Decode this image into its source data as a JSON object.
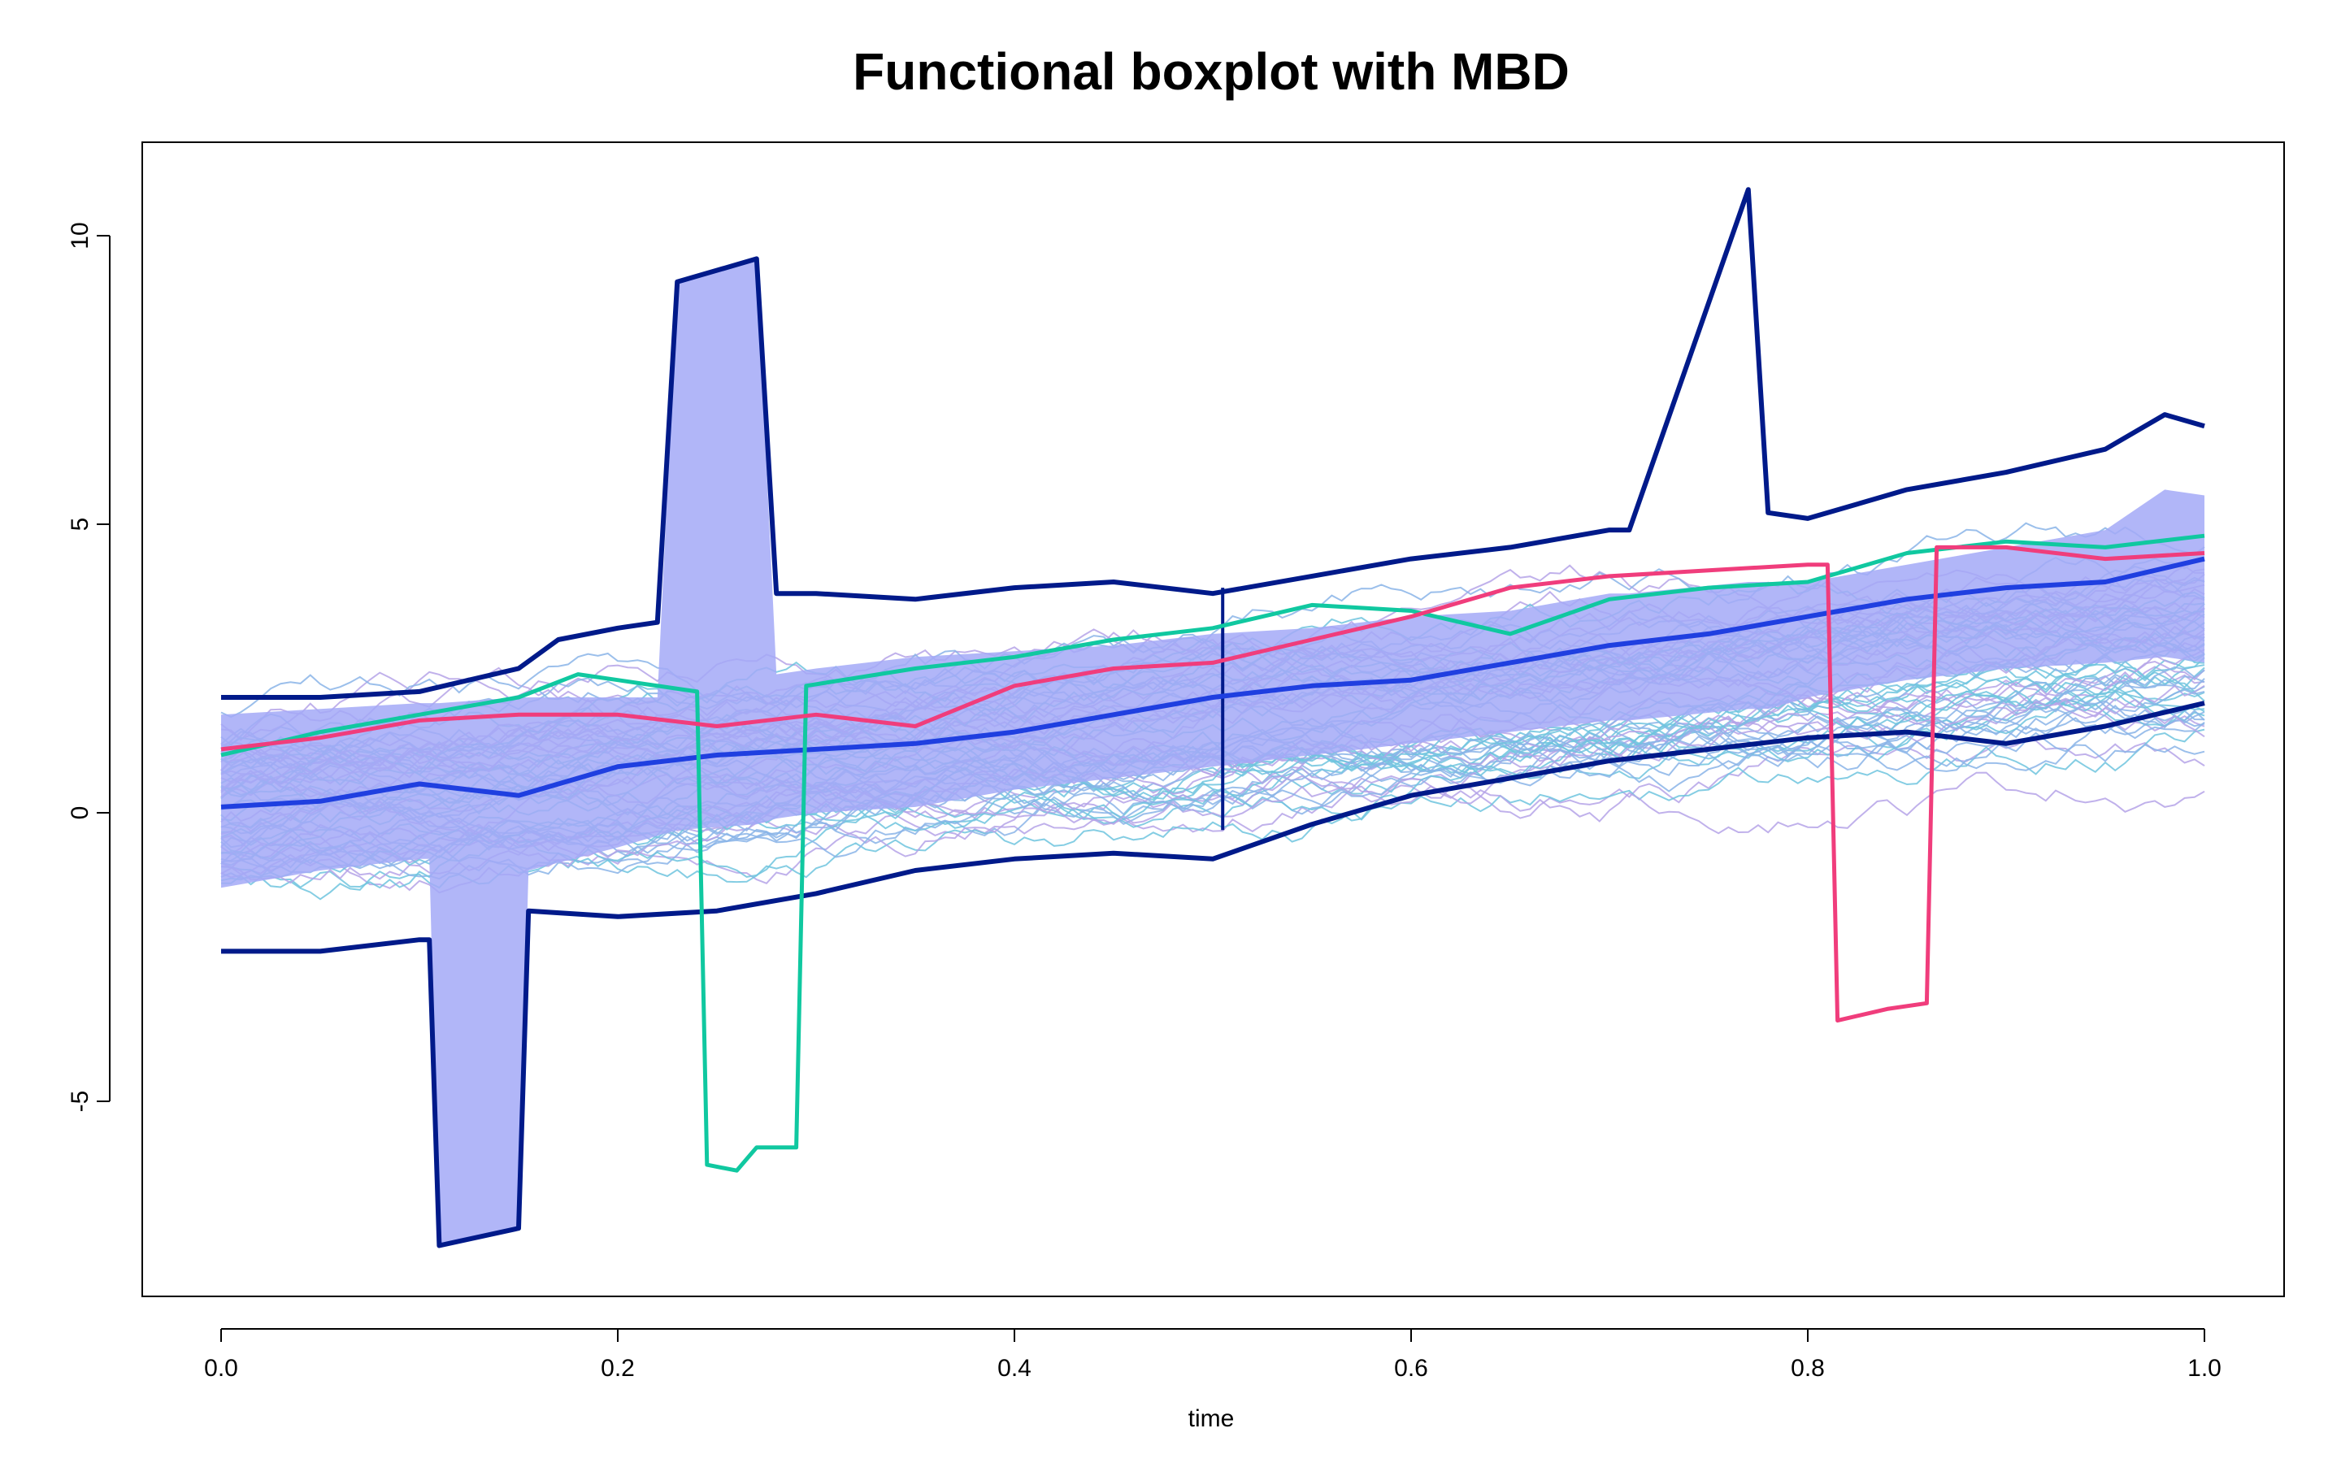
{
  "chart_data": {
    "type": "line",
    "title": "Functional boxplot with MBD",
    "xlabel": "time",
    "ylabel": "",
    "xlim": [
      0.0,
      1.0
    ],
    "ylim": [
      -8.0,
      11.5
    ],
    "xticks": [
      "0.0",
      "0.2",
      "0.4",
      "0.6",
      "0.8",
      "1.0"
    ],
    "yticks": [
      "-5",
      "0",
      "5",
      "10"
    ],
    "grid": false,
    "legend": "none",
    "colors": {
      "central_region_fill": "#a3a9f7",
      "boundary": "#001a8a",
      "median": "#1f3fe0",
      "samples": [
        "#6fc4de",
        "#8ab4e8",
        "#b5a3e8"
      ],
      "outlier_green": "#10c8a0",
      "outlier_pink": "#f03d7c"
    },
    "series": [
      {
        "role": "upper envelope",
        "x": [
          0.0,
          0.05,
          0.1,
          0.15,
          0.17,
          0.2,
          0.22,
          0.23,
          0.27,
          0.28,
          0.3,
          0.35,
          0.4,
          0.45,
          0.5,
          0.55,
          0.6,
          0.65,
          0.7,
          0.71,
          0.77,
          0.78,
          0.8,
          0.85,
          0.9,
          0.95,
          0.98,
          1.0
        ],
        "y": [
          2.0,
          2.0,
          2.1,
          2.5,
          3.0,
          3.2,
          3.3,
          9.2,
          9.6,
          3.8,
          3.8,
          3.7,
          3.9,
          4.0,
          3.8,
          4.1,
          4.4,
          4.6,
          4.9,
          4.9,
          10.8,
          5.2,
          5.1,
          5.6,
          5.9,
          6.3,
          6.9,
          6.7
        ]
      },
      {
        "role": "lower envelope",
        "x": [
          0.0,
          0.05,
          0.1,
          0.105,
          0.11,
          0.15,
          0.155,
          0.2,
          0.25,
          0.3,
          0.35,
          0.4,
          0.45,
          0.5,
          0.55,
          0.6,
          0.65,
          0.7,
          0.75,
          0.8,
          0.85,
          0.9,
          0.95,
          1.0
        ],
        "y": [
          -2.4,
          -2.4,
          -2.2,
          -2.2,
          -7.5,
          -7.2,
          -1.7,
          -1.8,
          -1.7,
          -1.4,
          -1.0,
          -0.8,
          -0.7,
          -0.8,
          -0.2,
          0.3,
          0.6,
          0.9,
          1.1,
          1.3,
          1.4,
          1.2,
          1.5,
          1.9
        ]
      },
      {
        "role": "median",
        "x": [
          0.0,
          0.05,
          0.1,
          0.15,
          0.2,
          0.25,
          0.3,
          0.35,
          0.4,
          0.45,
          0.5,
          0.55,
          0.6,
          0.65,
          0.7,
          0.75,
          0.8,
          0.85,
          0.9,
          0.95,
          1.0
        ],
        "y": [
          0.1,
          0.2,
          0.5,
          0.3,
          0.8,
          1.0,
          1.1,
          1.2,
          1.4,
          1.7,
          2.0,
          2.2,
          2.3,
          2.6,
          2.9,
          3.1,
          3.4,
          3.7,
          3.9,
          4.0,
          4.4
        ]
      },
      {
        "role": "outlier",
        "color": "outlier_green",
        "x": [
          0.0,
          0.05,
          0.1,
          0.15,
          0.18,
          0.2,
          0.24,
          0.245,
          0.26,
          0.27,
          0.29,
          0.295,
          0.35,
          0.4,
          0.45,
          0.5,
          0.55,
          0.6,
          0.65,
          0.7,
          0.75,
          0.8,
          0.85,
          0.9,
          0.95,
          1.0
        ],
        "y": [
          1.0,
          1.4,
          1.7,
          2.0,
          2.4,
          2.3,
          2.1,
          -6.1,
          -6.2,
          -5.8,
          -5.8,
          2.2,
          2.5,
          2.7,
          3.0,
          3.2,
          3.6,
          3.5,
          3.1,
          3.7,
          3.9,
          4.0,
          4.5,
          4.7,
          4.6,
          4.8
        ]
      },
      {
        "role": "outlier",
        "color": "outlier_pink",
        "x": [
          0.0,
          0.05,
          0.1,
          0.15,
          0.2,
          0.25,
          0.3,
          0.35,
          0.4,
          0.45,
          0.5,
          0.55,
          0.6,
          0.65,
          0.7,
          0.75,
          0.8,
          0.81,
          0.815,
          0.84,
          0.86,
          0.865,
          0.9,
          0.95,
          1.0
        ],
        "y": [
          1.1,
          1.3,
          1.6,
          1.7,
          1.7,
          1.5,
          1.7,
          1.5,
          2.2,
          2.5,
          2.6,
          3.0,
          3.4,
          3.9,
          4.1,
          4.2,
          4.3,
          4.3,
          -3.6,
          -3.4,
          -3.3,
          4.6,
          4.6,
          4.4,
          4.5
        ]
      }
    ],
    "central_region": {
      "x": [
        0.0,
        0.05,
        0.1,
        0.105,
        0.11,
        0.15,
        0.155,
        0.2,
        0.22,
        0.23,
        0.27,
        0.28,
        0.3,
        0.35,
        0.4,
        0.45,
        0.5,
        0.55,
        0.6,
        0.65,
        0.7,
        0.71,
        0.77,
        0.78,
        0.8,
        0.85,
        0.9,
        0.95,
        0.98,
        1.0
      ],
      "upper": [
        1.7,
        1.8,
        1.9,
        1.9,
        1.9,
        2.0,
        2.0,
        2.0,
        2.0,
        9.2,
        9.6,
        2.4,
        2.5,
        2.7,
        2.8,
        2.9,
        3.1,
        3.2,
        3.4,
        3.5,
        3.8,
        3.8,
        4.0,
        4.0,
        4.0,
        4.3,
        4.6,
        4.9,
        5.6,
        5.5
      ],
      "lower": [
        -1.3,
        -1.0,
        -0.8,
        -0.8,
        -7.5,
        -7.2,
        -1.0,
        -0.6,
        -0.4,
        -0.3,
        -0.2,
        -0.1,
        0.0,
        0.1,
        0.4,
        0.6,
        0.8,
        1.0,
        1.2,
        1.4,
        1.6,
        1.6,
        1.8,
        1.8,
        2.0,
        2.3,
        2.5,
        2.6,
        2.7,
        2.6
      ]
    },
    "sample_curve_count": 60
  }
}
